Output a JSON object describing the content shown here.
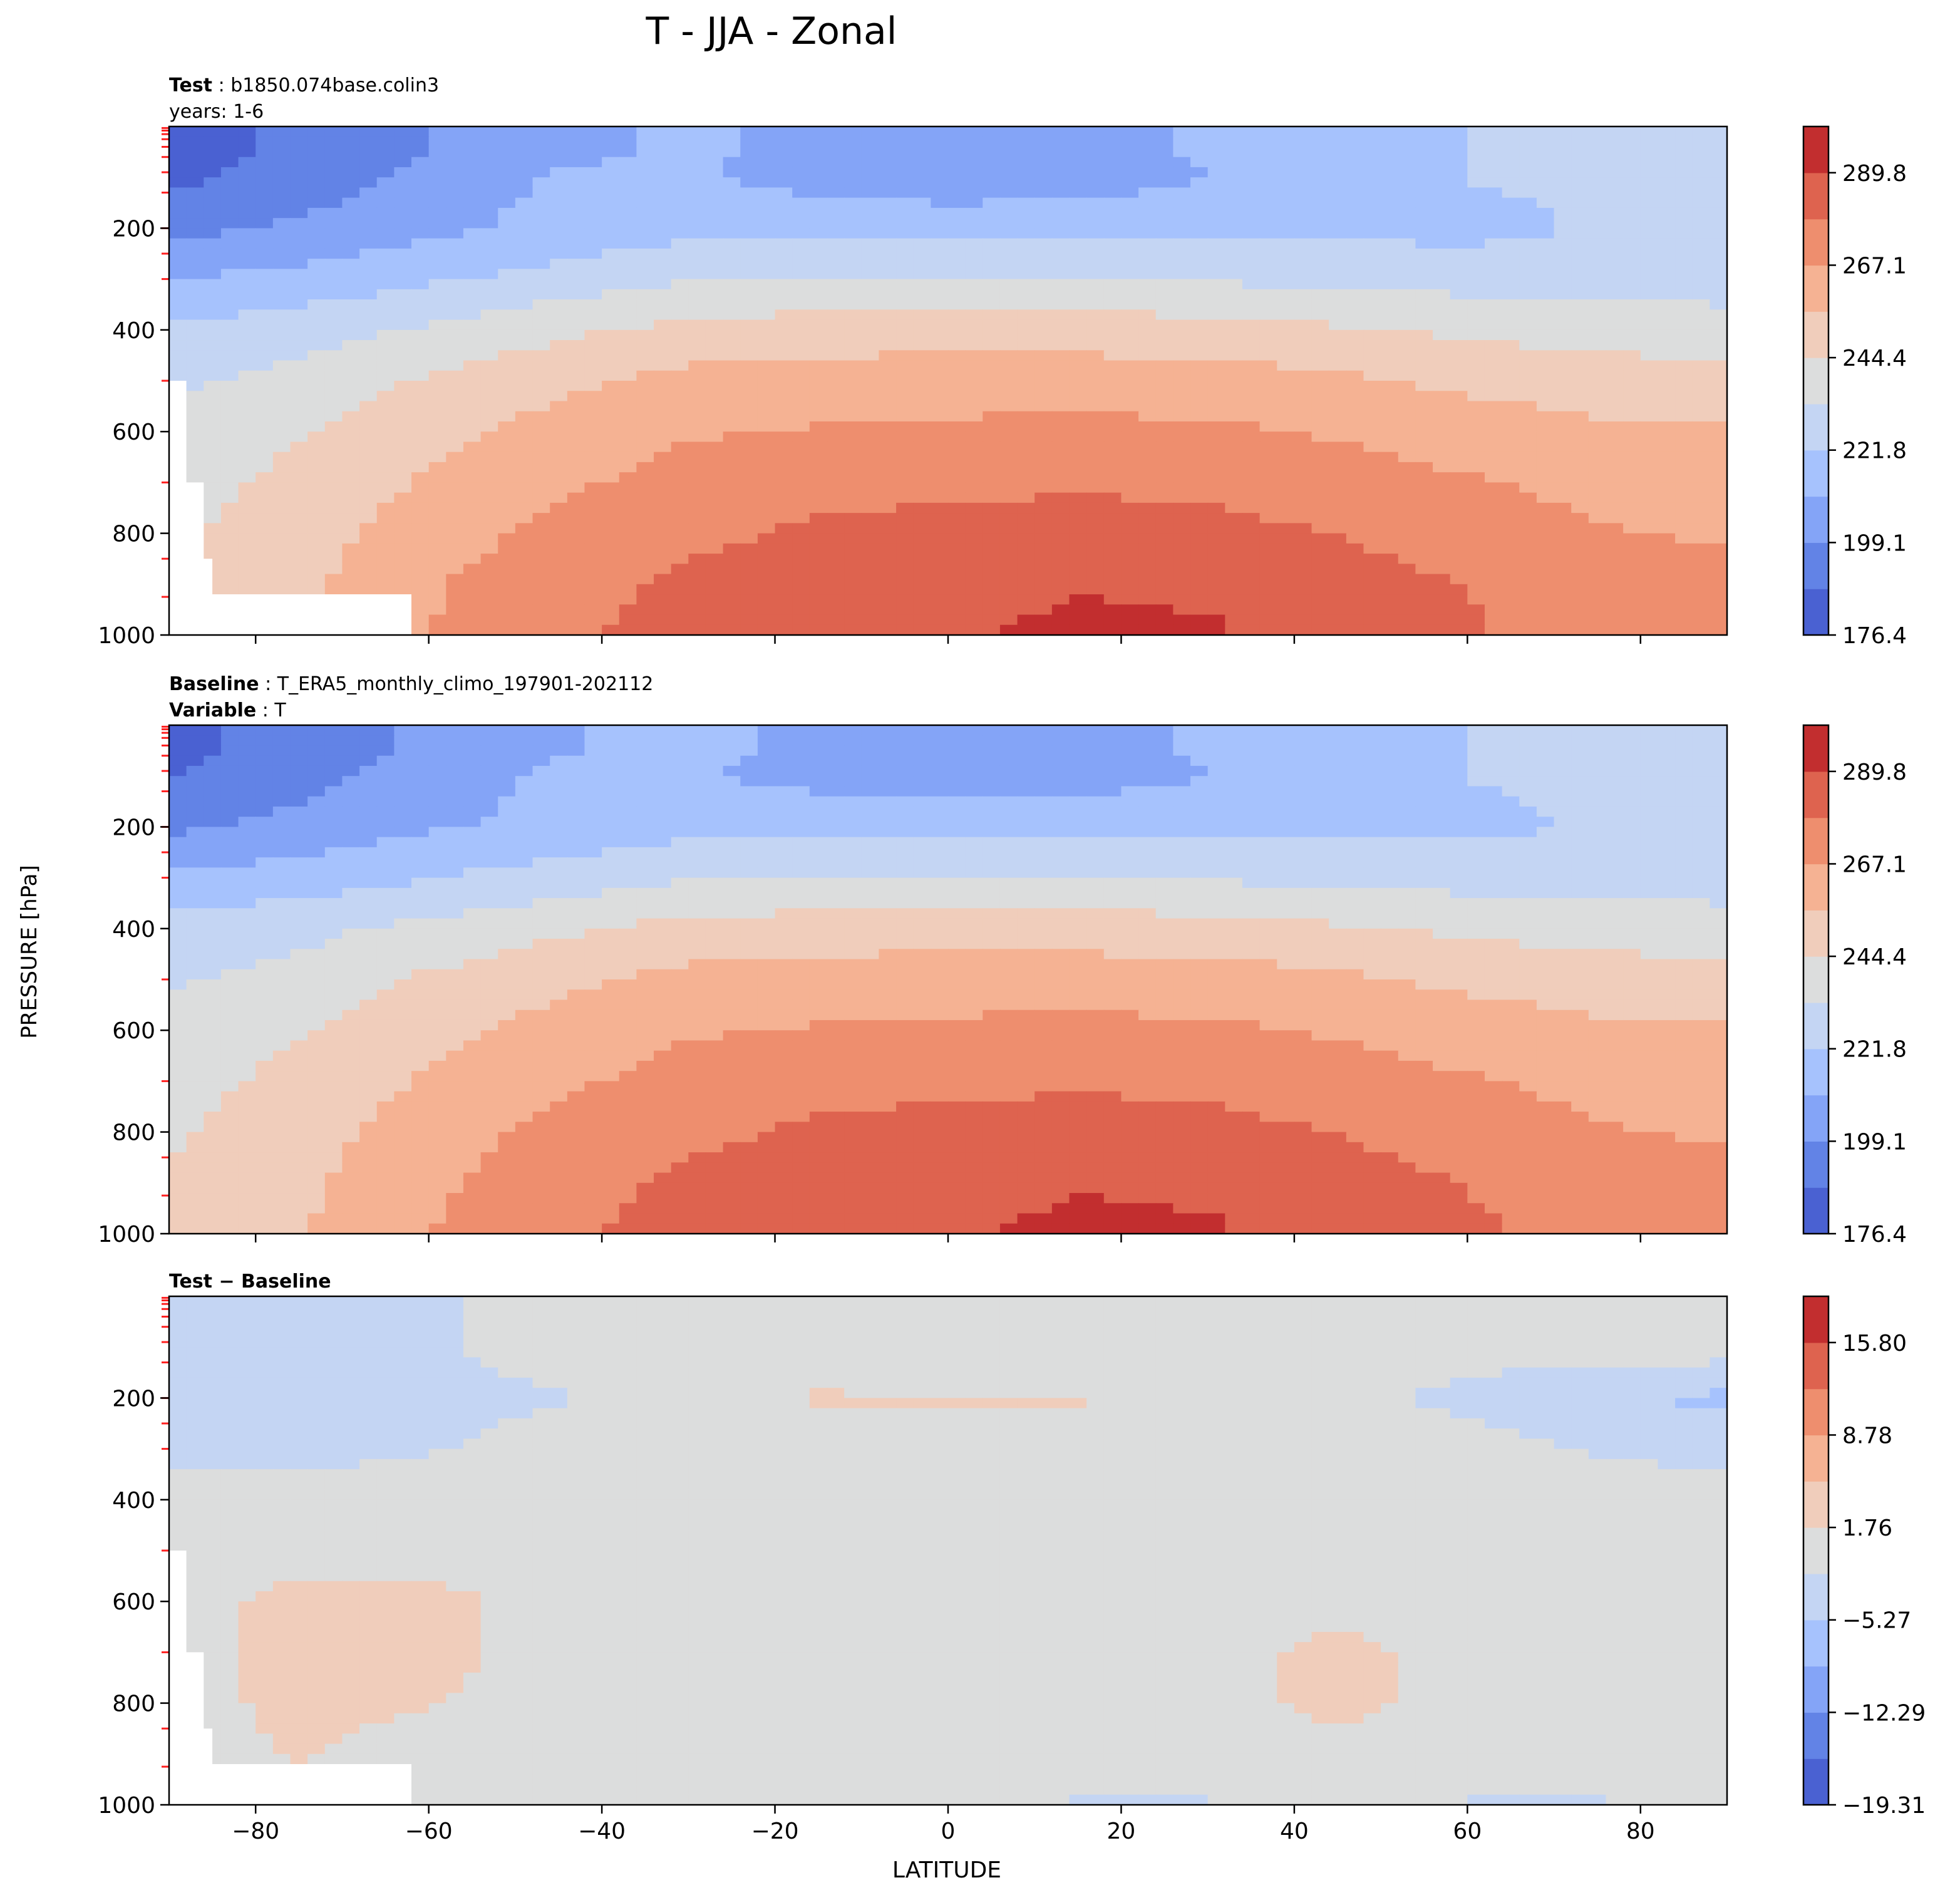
{
  "figure": {
    "title": "T - JJA - Zonal",
    "ylabel": "PRESSURE [hPa]",
    "xlabel": "LATITUDE"
  },
  "panels": [
    {
      "id": "test",
      "header_lines": [
        {
          "bold": "Test",
          "text": "b1850.074base.colin3"
        },
        {
          "bold": "",
          "text": "years: 1-6"
        }
      ]
    },
    {
      "id": "baseline",
      "header_lines": [
        {
          "bold": "Baseline",
          "text": "T_ERA5_monthly_climo_197901-202112"
        },
        {
          "bold": "Variable",
          "text": "T"
        }
      ]
    },
    {
      "id": "diff",
      "header_lines": [
        {
          "bold": "Test − Baseline",
          "text": ""
        }
      ]
    }
  ],
  "colors": {
    "temperature_levels": [
      "#4a61d2",
      "#6283e6",
      "#84a4f7",
      "#a6c2fd",
      "#c4d5f3",
      "#dcdddd",
      "#f0cdbb",
      "#f5b293",
      "#ee8e6e",
      "#de634f",
      "#c22e2f"
    ],
    "difference_levels": [
      "#4a61d2",
      "#6283e6",
      "#84a4f7",
      "#a6c2fd",
      "#c4d5f3",
      "#dcdddd",
      "#f0cdbb",
      "#f5b293",
      "#ee8e6e",
      "#de634f",
      "#c22e2f"
    ]
  },
  "chart_data": [
    {
      "type": "heatmap",
      "panel": "test",
      "x": "latitude",
      "xlim": [
        -90,
        90
      ],
      "xticks": [
        -80,
        -60,
        -40,
        -20,
        0,
        20,
        40,
        60,
        80
      ],
      "ylim": [
        1000,
        0
      ],
      "yticks": [
        200,
        400,
        600,
        800,
        1000
      ],
      "colorbar_ticks": [
        "289.8",
        "267.1",
        "244.4",
        "221.8",
        "199.1",
        "176.4"
      ],
      "colorbar_range": [
        176.4,
        301.1
      ],
      "contour_levels": 11,
      "lat_grid": [
        -90,
        -75,
        -60,
        -45,
        -30,
        -15,
        0,
        15,
        30,
        45,
        60,
        75,
        90
      ],
      "lev_grid": [
        50,
        100,
        200,
        300,
        400,
        500,
        600,
        700,
        800,
        900,
        1000
      ],
      "values": [
        [
          183,
          190,
          199,
          208,
          212,
          208,
          204,
          207,
          212,
          218,
          222,
          224,
          225
        ],
        [
          185,
          192,
          202,
          212,
          212,
          205,
          201,
          204,
          210,
          218,
          222,
          224,
          225
        ],
        [
          195,
          201,
          208,
          214,
          218,
          220,
          219,
          219,
          220,
          219,
          218,
          223,
          225
        ],
        [
          210,
          214,
          220,
          226,
          232,
          234,
          234,
          234,
          232,
          230,
          229,
          228,
          228
        ],
        [
          224,
          228,
          235,
          242,
          248,
          250,
          250,
          250,
          249,
          246,
          242,
          240,
          238
        ],
        [
          231,
          237,
          246,
          253,
          259,
          261,
          262,
          262,
          261,
          258,
          253,
          250,
          249
        ],
        [
          236,
          243,
          252,
          260,
          266,
          268,
          269,
          270,
          269,
          266,
          262,
          258,
          257
        ],
        [
          239,
          248,
          257,
          265,
          271,
          275,
          276,
          277,
          276,
          272,
          268,
          264,
          262
        ],
        [
          242,
          251,
          262,
          270,
          276,
          280,
          282,
          283,
          282,
          278,
          273,
          268,
          266
        ],
        [
          245,
          253,
          266,
          274,
          281,
          285,
          286,
          289,
          288,
          283,
          278,
          271,
          270
        ],
        [
          247,
          255,
          267,
          276,
          283,
          287,
          289,
          292,
          291,
          286,
          280,
          273,
          271
        ]
      ]
    },
    {
      "type": "heatmap",
      "panel": "baseline",
      "x": "latitude",
      "xlim": [
        -90,
        90
      ],
      "xticks": [
        -80,
        -60,
        -40,
        -20,
        0,
        20,
        40,
        60,
        80
      ],
      "ylim": [
        1000,
        0
      ],
      "yticks": [
        200,
        400,
        600,
        800,
        1000
      ],
      "colorbar_ticks": [
        "289.8",
        "267.1",
        "244.4",
        "221.8",
        "199.1",
        "176.4"
      ],
      "colorbar_range": [
        176.4,
        301.1
      ],
      "contour_levels": 11,
      "lat_grid": [
        -90,
        -75,
        -60,
        -45,
        -30,
        -15,
        0,
        15,
        30,
        45,
        60,
        75,
        90
      ],
      "lev_grid": [
        50,
        100,
        200,
        300,
        400,
        500,
        600,
        700,
        800,
        900,
        1000
      ],
      "values": [
        [
          185,
          193,
          202,
          210,
          213,
          208,
          205,
          207,
          212,
          218,
          222,
          224,
          225
        ],
        [
          187,
          195,
          204,
          213,
          212,
          206,
          202,
          205,
          210,
          217,
          222,
          224,
          225
        ],
        [
          197,
          203,
          209,
          214,
          218,
          220,
          219,
          219,
          220,
          219,
          219,
          223,
          225
        ],
        [
          212,
          216,
          221,
          227,
          232,
          234,
          234,
          234,
          232,
          230,
          229,
          228,
          228
        ],
        [
          226,
          230,
          236,
          242,
          248,
          250,
          250,
          250,
          249,
          246,
          242,
          240,
          238
        ],
        [
          232,
          237,
          246,
          253,
          259,
          261,
          262,
          262,
          261,
          258,
          253,
          250,
          249
        ],
        [
          237,
          243,
          252,
          260,
          266,
          268,
          269,
          270,
          269,
          266,
          262,
          258,
          257
        ],
        [
          240,
          248,
          257,
          265,
          271,
          275,
          276,
          277,
          276,
          272,
          268,
          264,
          262
        ],
        [
          243,
          251,
          262,
          270,
          276,
          280,
          282,
          283,
          282,
          278,
          273,
          268,
          266
        ],
        [
          245,
          253,
          265,
          274,
          281,
          285,
          286,
          289,
          288,
          283,
          278,
          271,
          270
        ],
        [
          247,
          255,
          267,
          276,
          283,
          287,
          289,
          292,
          291,
          286,
          281,
          273,
          271
        ]
      ]
    },
    {
      "type": "heatmap",
      "panel": "diff",
      "x": "latitude",
      "xlim": [
        -90,
        90
      ],
      "xticks": [
        -80,
        -60,
        -40,
        -20,
        0,
        20,
        40,
        60,
        80
      ],
      "xticklabels": [
        "−80",
        "−60",
        "−40",
        "−20",
        "0",
        "20",
        "40",
        "60",
        "80"
      ],
      "ylim": [
        1000,
        0
      ],
      "yticks": [
        200,
        400,
        600,
        800,
        1000
      ],
      "colorbar_ticks": [
        "15.80",
        "8.78",
        "1.76",
        "−5.27",
        "−12.29",
        "−19.31"
      ],
      "colorbar_range": [
        -19.31,
        19.31
      ],
      "contour_levels": 11,
      "lat_grid": [
        -90,
        -75,
        -60,
        -45,
        -30,
        -15,
        0,
        15,
        30,
        45,
        60,
        75,
        90
      ],
      "lev_grid": [
        50,
        100,
        200,
        300,
        400,
        500,
        600,
        700,
        800,
        900,
        1000
      ],
      "values": [
        [
          -3,
          -3,
          -2,
          -1,
          0,
          0,
          0,
          0,
          0,
          0,
          0,
          0,
          0
        ],
        [
          -3,
          -3,
          -2,
          -1,
          0,
          0,
          -2,
          -2,
          0,
          0,
          0,
          0,
          0
        ],
        [
          -3,
          -3,
          -2,
          -2,
          0,
          2,
          2,
          2,
          0,
          0,
          -3,
          -5,
          -6
        ],
        [
          -3,
          -3,
          -2,
          -1,
          0,
          0,
          0,
          0,
          0,
          0,
          0,
          -2,
          -3
        ],
        [
          0,
          0,
          0,
          0,
          0,
          0,
          0,
          0,
          0,
          0,
          0,
          0,
          0
        ],
        [
          0,
          0,
          0,
          0,
          0,
          0,
          0,
          0,
          0,
          0,
          0,
          0,
          0
        ],
        [
          0,
          3,
          3,
          0,
          0,
          0,
          0,
          0,
          0,
          0,
          0,
          0,
          0
        ],
        [
          0,
          3,
          3,
          0,
          0,
          0,
          0,
          0,
          0,
          3,
          0,
          0,
          0
        ],
        [
          0,
          3,
          2,
          0,
          0,
          0,
          0,
          0,
          0,
          3,
          0,
          0,
          0
        ],
        [
          0,
          2,
          0,
          0,
          0,
          0,
          0,
          0,
          0,
          0,
          0,
          0,
          0
        ],
        [
          0,
          0,
          2,
          0,
          0,
          0,
          0,
          -2,
          -2,
          0,
          -2,
          -2,
          0
        ]
      ]
    }
  ]
}
